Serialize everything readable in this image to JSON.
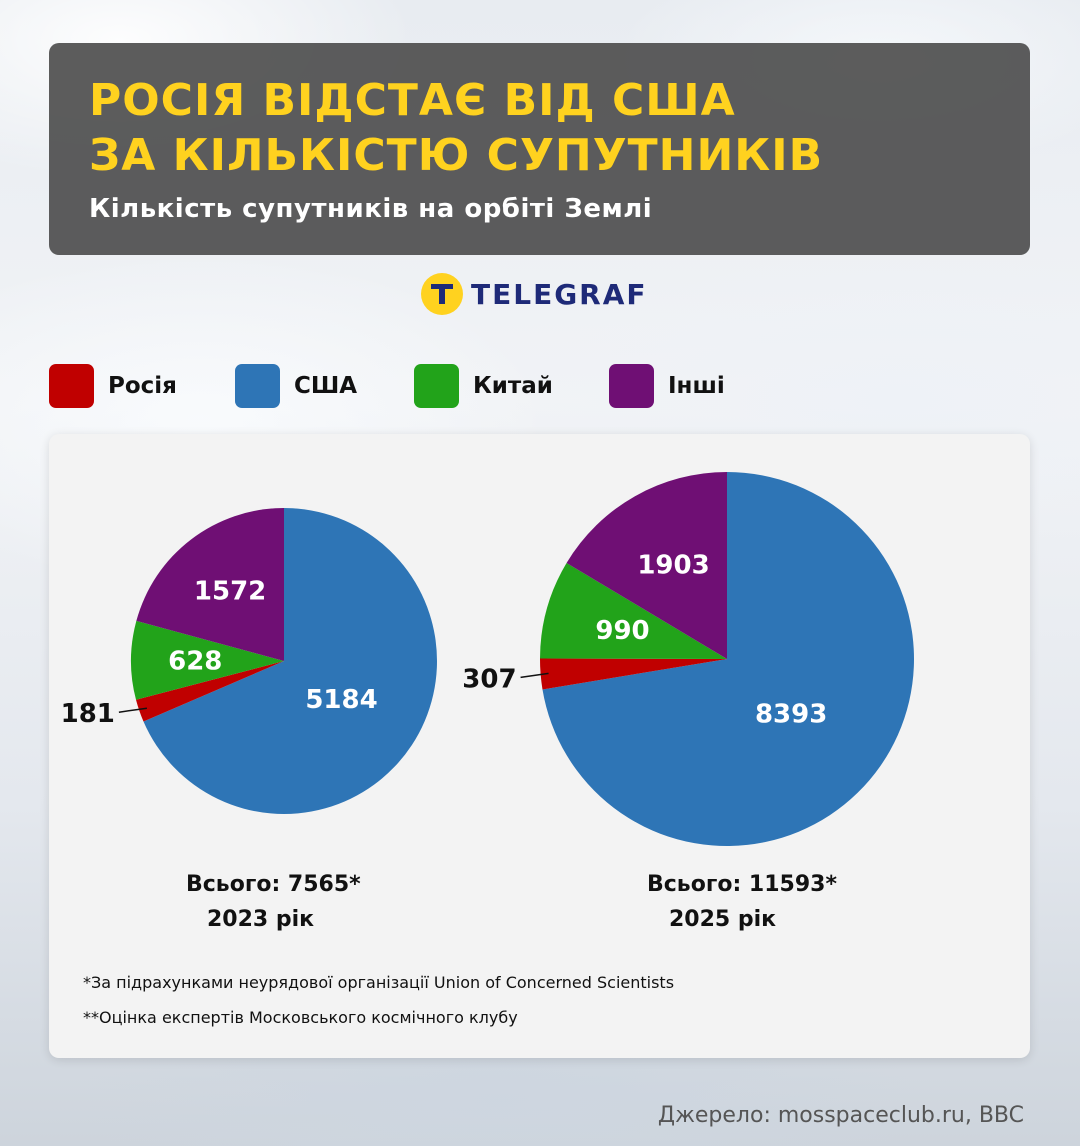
{
  "header": {
    "title_line1": "Росія відстає від США",
    "title_line2": "за кількістю супутників",
    "subtitle": "Кількість супутників на орбіті Землі"
  },
  "logo": {
    "text": "TELEGRAF",
    "icon": "telegraf-logo-icon"
  },
  "colors": {
    "russia": "#c00000",
    "usa": "#2e75b6",
    "china": "#22a31a",
    "others": "#6f0f74"
  },
  "legend": [
    {
      "label": "Росія",
      "color": "#c00000"
    },
    {
      "label": "США",
      "color": "#2e75b6"
    },
    {
      "label": "Китай",
      "color": "#22a31a"
    },
    {
      "label": "Інші",
      "color": "#6f0f74"
    }
  ],
  "chart_data": [
    {
      "type": "pie",
      "categories": [
        "Росія",
        "США",
        "Китай",
        "Інші"
      ],
      "values": [
        181,
        5184,
        628,
        1572
      ],
      "total_label": "Всього: 7565*",
      "year_label": "2023 рік"
    },
    {
      "type": "pie",
      "categories": [
        "Росія",
        "США",
        "Китай",
        "Інші"
      ],
      "values": [
        307,
        8393,
        990,
        1903
      ],
      "total_label": "Всього: 11593*",
      "year_label": "2025 рік"
    }
  ],
  "notes": [
    "*За підрахунками неурядової організації Union of Concerned Scientists",
    "**Оцінка експертів Московського космічного клубу"
  ],
  "source": "Джерело: mosspaceclub.ru, BBC"
}
